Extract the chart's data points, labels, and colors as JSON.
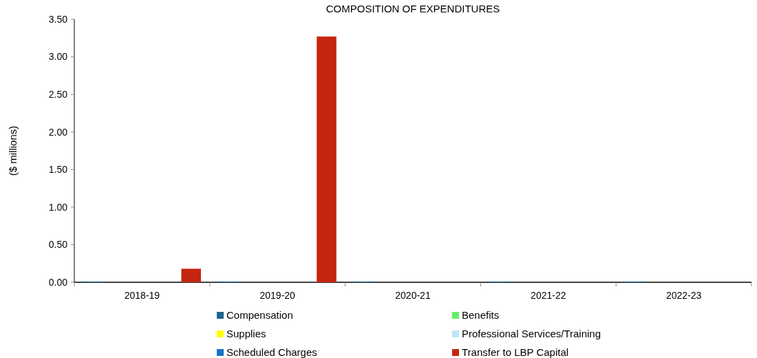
{
  "chart_data": {
    "type": "bar",
    "title": "COMPOSITION OF EXPENDITURES",
    "ylabel": "($ millions)",
    "categories": [
      "2018-19",
      "2019-20",
      "2020-21",
      "2021-22",
      "2022-23"
    ],
    "series": [
      {
        "name": "Compensation",
        "color": "#1f6391",
        "values": [
          0.01,
          0.01,
          0.01,
          0.01,
          0.01
        ]
      },
      {
        "name": "Benefits",
        "color": "#66ee66",
        "values": [
          0,
          0,
          0,
          0,
          0
        ]
      },
      {
        "name": "Supplies",
        "color": "#ffff00",
        "values": [
          0,
          0,
          0,
          0,
          0
        ]
      },
      {
        "name": "Professional Services/Training",
        "color": "#bde6f7",
        "values": [
          0,
          0,
          0,
          0,
          0
        ]
      },
      {
        "name": "Scheduled Charges",
        "color": "#1874c9",
        "values": [
          0,
          0,
          0,
          0,
          0
        ]
      },
      {
        "name": "Transfer to LBP Capital",
        "color": "#c4260f",
        "values": [
          0.18,
          3.27,
          0,
          0,
          0
        ]
      }
    ],
    "ylim": [
      0,
      3.5
    ],
    "yticks": [
      {
        "value": 0,
        "label": "0.00"
      },
      {
        "value": 0.5,
        "label": "0.50"
      },
      {
        "value": 1,
        "label": "1.00"
      },
      {
        "value": 1.5,
        "label": "1.50"
      },
      {
        "value": 2,
        "label": "2.00"
      },
      {
        "value": 2.5,
        "label": "2.50"
      },
      {
        "value": 3,
        "label": "3.00"
      },
      {
        "value": 3.5,
        "label": "3.50"
      }
    ],
    "grid": false,
    "legend": "bottom"
  }
}
